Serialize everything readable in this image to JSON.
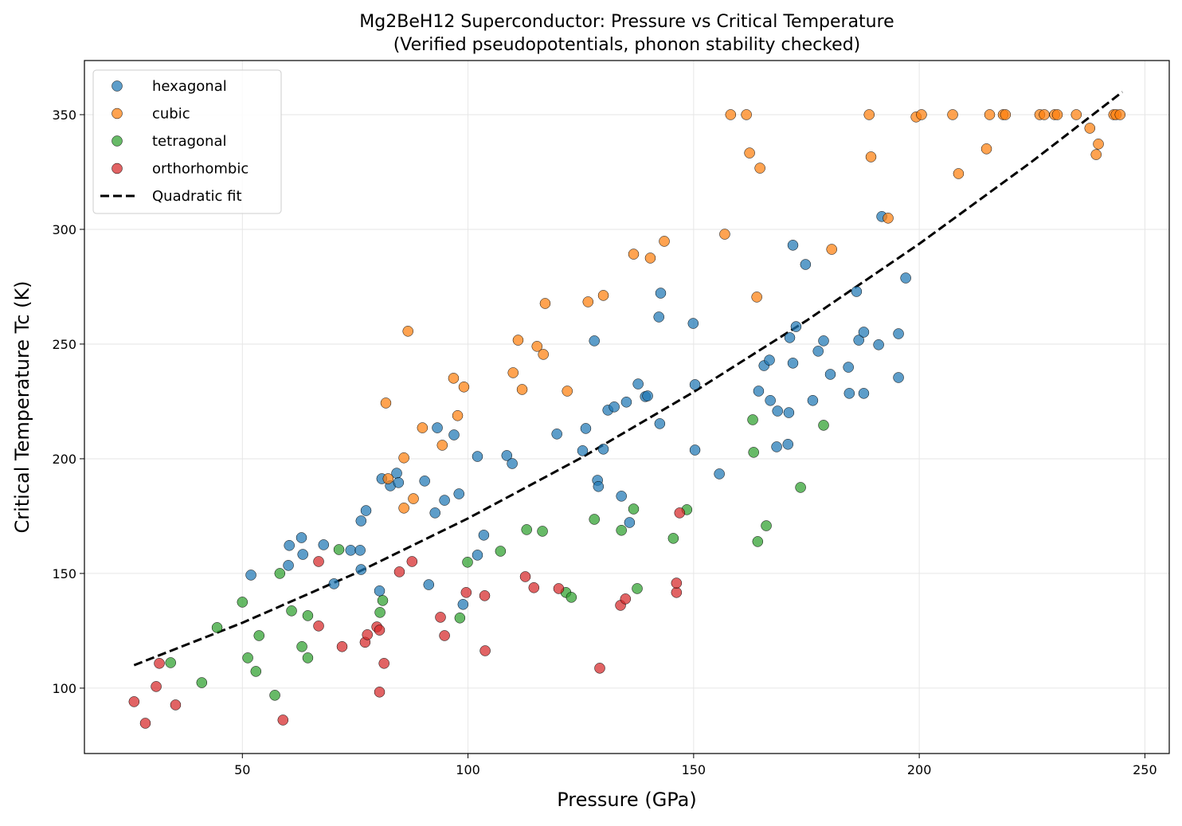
{
  "chart_data": {
    "type": "scatter",
    "title": "Mg2BeH12 Superconductor: Pressure vs Critical Temperature",
    "subtitle": "(Verified pseudopotentials, phonon stability checked)",
    "xlabel": "Pressure (GPa)",
    "ylabel": "Critical Temperature Tc (K)",
    "xlim": [
      15,
      255.4
    ],
    "ylim": [
      71.5,
      373.6
    ],
    "xticks": [
      50,
      100,
      150,
      200,
      250
    ],
    "yticks": [
      100,
      150,
      200,
      250,
      300,
      350
    ],
    "grid": true,
    "legend_position": "top-left",
    "series": [
      {
        "name": "hexagonal",
        "color": "#1f77b4",
        "points": [
          [
            51.9,
            149.3
          ],
          [
            60.4,
            162.2
          ],
          [
            60.2,
            153.5
          ],
          [
            63.1,
            165.6
          ],
          [
            63.4,
            158.3
          ],
          [
            68.0,
            162.5
          ],
          [
            70.3,
            145.5
          ],
          [
            74.0,
            160.1
          ],
          [
            76.1,
            160.1
          ],
          [
            76.3,
            172.9
          ],
          [
            77.4,
            177.4
          ],
          [
            76.3,
            151.7
          ],
          [
            80.4,
            142.4
          ],
          [
            80.9,
            191.3
          ],
          [
            82.8,
            188.2
          ],
          [
            84.2,
            193.7
          ],
          [
            84.6,
            189.6
          ],
          [
            90.4,
            190.3
          ],
          [
            91.3,
            145.1
          ],
          [
            92.7,
            176.4
          ],
          [
            93.2,
            213.5
          ],
          [
            94.8,
            181.9
          ],
          [
            96.9,
            210.4
          ],
          [
            98.0,
            184.7
          ],
          [
            98.9,
            136.5
          ],
          [
            102.1,
            201.0
          ],
          [
            102.1,
            158.0
          ],
          [
            103.5,
            166.7
          ],
          [
            108.6,
            201.4
          ],
          [
            109.8,
            197.9
          ],
          [
            119.7,
            210.8
          ],
          [
            126.1,
            213.2
          ],
          [
            125.4,
            203.5
          ],
          [
            128.0,
            251.4
          ],
          [
            128.7,
            190.6
          ],
          [
            128.9,
            187.9
          ],
          [
            130.0,
            204.2
          ],
          [
            131.0,
            221.2
          ],
          [
            132.4,
            222.6
          ],
          [
            135.1,
            224.7
          ],
          [
            134.0,
            183.7
          ],
          [
            135.8,
            172.2
          ],
          [
            137.7,
            232.6
          ],
          [
            139.3,
            227.1
          ],
          [
            139.8,
            227.4
          ],
          [
            142.3,
            261.8
          ],
          [
            142.7,
            272.2
          ],
          [
            142.5,
            215.3
          ],
          [
            149.9,
            259.0
          ],
          [
            150.3,
            232.3
          ],
          [
            150.3,
            203.8
          ],
          [
            155.7,
            193.4
          ],
          [
            164.4,
            229.5
          ],
          [
            165.6,
            240.6
          ],
          [
            166.8,
            243.0
          ],
          [
            167.0,
            225.4
          ],
          [
            168.6,
            220.8
          ],
          [
            168.4,
            205.2
          ],
          [
            170.9,
            206.3
          ],
          [
            171.1,
            220.1
          ],
          [
            171.3,
            252.8
          ],
          [
            172.0,
            241.7
          ],
          [
            172.0,
            293.1
          ],
          [
            172.7,
            257.6
          ],
          [
            174.8,
            284.7
          ],
          [
            176.4,
            225.4
          ],
          [
            177.6,
            246.9
          ],
          [
            178.8,
            251.4
          ],
          [
            180.3,
            236.8
          ],
          [
            184.3,
            239.9
          ],
          [
            184.5,
            228.5
          ],
          [
            186.1,
            272.9
          ],
          [
            186.6,
            251.7
          ],
          [
            187.7,
            255.2
          ],
          [
            187.7,
            228.5
          ],
          [
            191.0,
            249.7
          ],
          [
            191.7,
            305.6
          ],
          [
            195.4,
            254.5
          ],
          [
            195.4,
            235.4
          ],
          [
            197.0,
            278.8
          ]
        ]
      },
      {
        "name": "cubic",
        "color": "#ff7f0e",
        "points": [
          [
            81.8,
            224.3
          ],
          [
            82.3,
            191.3
          ],
          [
            85.8,
            178.5
          ],
          [
            85.8,
            200.4
          ],
          [
            86.7,
            255.6
          ],
          [
            87.9,
            182.6
          ],
          [
            89.9,
            213.5
          ],
          [
            94.3,
            205.9
          ],
          [
            96.8,
            235.1
          ],
          [
            97.7,
            218.8
          ],
          [
            99.1,
            231.3
          ],
          [
            110.0,
            237.5
          ],
          [
            111.1,
            251.7
          ],
          [
            112.0,
            230.2
          ],
          [
            115.3,
            249.0
          ],
          [
            116.7,
            245.5
          ],
          [
            117.1,
            267.7
          ],
          [
            122.0,
            229.5
          ],
          [
            126.6,
            268.4
          ],
          [
            130.0,
            271.2
          ],
          [
            136.7,
            289.2
          ],
          [
            140.4,
            287.5
          ],
          [
            143.5,
            294.8
          ],
          [
            156.9,
            297.9
          ],
          [
            158.2,
            350
          ],
          [
            161.7,
            350
          ],
          [
            162.4,
            333.3
          ],
          [
            164.0,
            270.5
          ],
          [
            164.7,
            326.7
          ],
          [
            180.6,
            291.3
          ],
          [
            188.9,
            350
          ],
          [
            189.3,
            331.6
          ],
          [
            193.1,
            304.9
          ],
          [
            199.3,
            349.0
          ],
          [
            200.5,
            350
          ],
          [
            207.4,
            350
          ],
          [
            208.7,
            324.3
          ],
          [
            214.9,
            335.1
          ],
          [
            215.6,
            350
          ],
          [
            218.6,
            350
          ],
          [
            219.1,
            350
          ],
          [
            226.7,
            350
          ],
          [
            227.7,
            350
          ],
          [
            230.0,
            350
          ],
          [
            230.6,
            350
          ],
          [
            234.8,
            350
          ],
          [
            237.8,
            344.1
          ],
          [
            239.2,
            332.6
          ],
          [
            239.7,
            337.2
          ],
          [
            243.1,
            350
          ],
          [
            243.6,
            350
          ],
          [
            244.5,
            350
          ]
        ]
      },
      {
        "name": "tetragonal",
        "color": "#2ca02c",
        "points": [
          [
            34.1,
            111.1
          ],
          [
            41.0,
            102.4
          ],
          [
            44.4,
            126.4
          ],
          [
            50.0,
            137.5
          ],
          [
            51.2,
            113.2
          ],
          [
            53.0,
            107.3
          ],
          [
            53.7,
            122.9
          ],
          [
            57.2,
            96.9
          ],
          [
            58.3,
            150.0
          ],
          [
            60.9,
            133.7
          ],
          [
            63.2,
            118.1
          ],
          [
            64.5,
            131.6
          ],
          [
            64.5,
            113.2
          ],
          [
            71.4,
            160.4
          ],
          [
            80.5,
            133.0
          ],
          [
            81.1,
            138.2
          ],
          [
            98.2,
            130.6
          ],
          [
            99.9,
            154.9
          ],
          [
            107.2,
            159.7
          ],
          [
            113.0,
            169.1
          ],
          [
            116.5,
            168.4
          ],
          [
            121.7,
            141.7
          ],
          [
            122.9,
            139.6
          ],
          [
            128.0,
            173.6
          ],
          [
            134.0,
            168.8
          ],
          [
            136.7,
            178.1
          ],
          [
            137.5,
            143.4
          ],
          [
            145.5,
            165.3
          ],
          [
            148.5,
            177.8
          ],
          [
            163.1,
            217.0
          ],
          [
            163.3,
            202.8
          ],
          [
            164.2,
            163.9
          ],
          [
            166.1,
            170.8
          ],
          [
            173.7,
            187.5
          ],
          [
            178.8,
            214.6
          ]
        ]
      },
      {
        "name": "orthorhombic",
        "color": "#d62728",
        "points": [
          [
            26.0,
            94.1
          ],
          [
            28.5,
            84.7
          ],
          [
            30.9,
            100.7
          ],
          [
            31.6,
            110.8
          ],
          [
            35.2,
            92.7
          ],
          [
            59.0,
            86.1
          ],
          [
            66.9,
            155.2
          ],
          [
            66.9,
            127.1
          ],
          [
            72.1,
            118.1
          ],
          [
            77.2,
            120.0
          ],
          [
            77.7,
            123.3
          ],
          [
            79.8,
            126.7
          ],
          [
            80.4,
            125.3
          ],
          [
            80.4,
            98.3
          ],
          [
            81.4,
            110.8
          ],
          [
            84.8,
            150.7
          ],
          [
            87.6,
            155.2
          ],
          [
            93.9,
            130.9
          ],
          [
            94.8,
            122.9
          ],
          [
            99.6,
            141.7
          ],
          [
            103.7,
            140.3
          ],
          [
            103.8,
            116.3
          ],
          [
            112.7,
            148.6
          ],
          [
            114.6,
            143.8
          ],
          [
            120.1,
            143.4
          ],
          [
            129.2,
            108.7
          ],
          [
            133.8,
            136.1
          ],
          [
            134.9,
            138.9
          ],
          [
            146.2,
            141.7
          ],
          [
            146.2,
            145.8
          ],
          [
            146.9,
            176.4
          ]
        ]
      }
    ],
    "fit": {
      "name": "Quadratic fit",
      "color": "#000000",
      "style": "dashed",
      "x": [
        26,
        50,
        75,
        100,
        125,
        150,
        175,
        200,
        225,
        245
      ],
      "y": [
        110.0,
        128.5,
        150.0,
        174.0,
        200.3,
        229.1,
        260.2,
        293.7,
        329.6,
        359.9
      ]
    }
  }
}
